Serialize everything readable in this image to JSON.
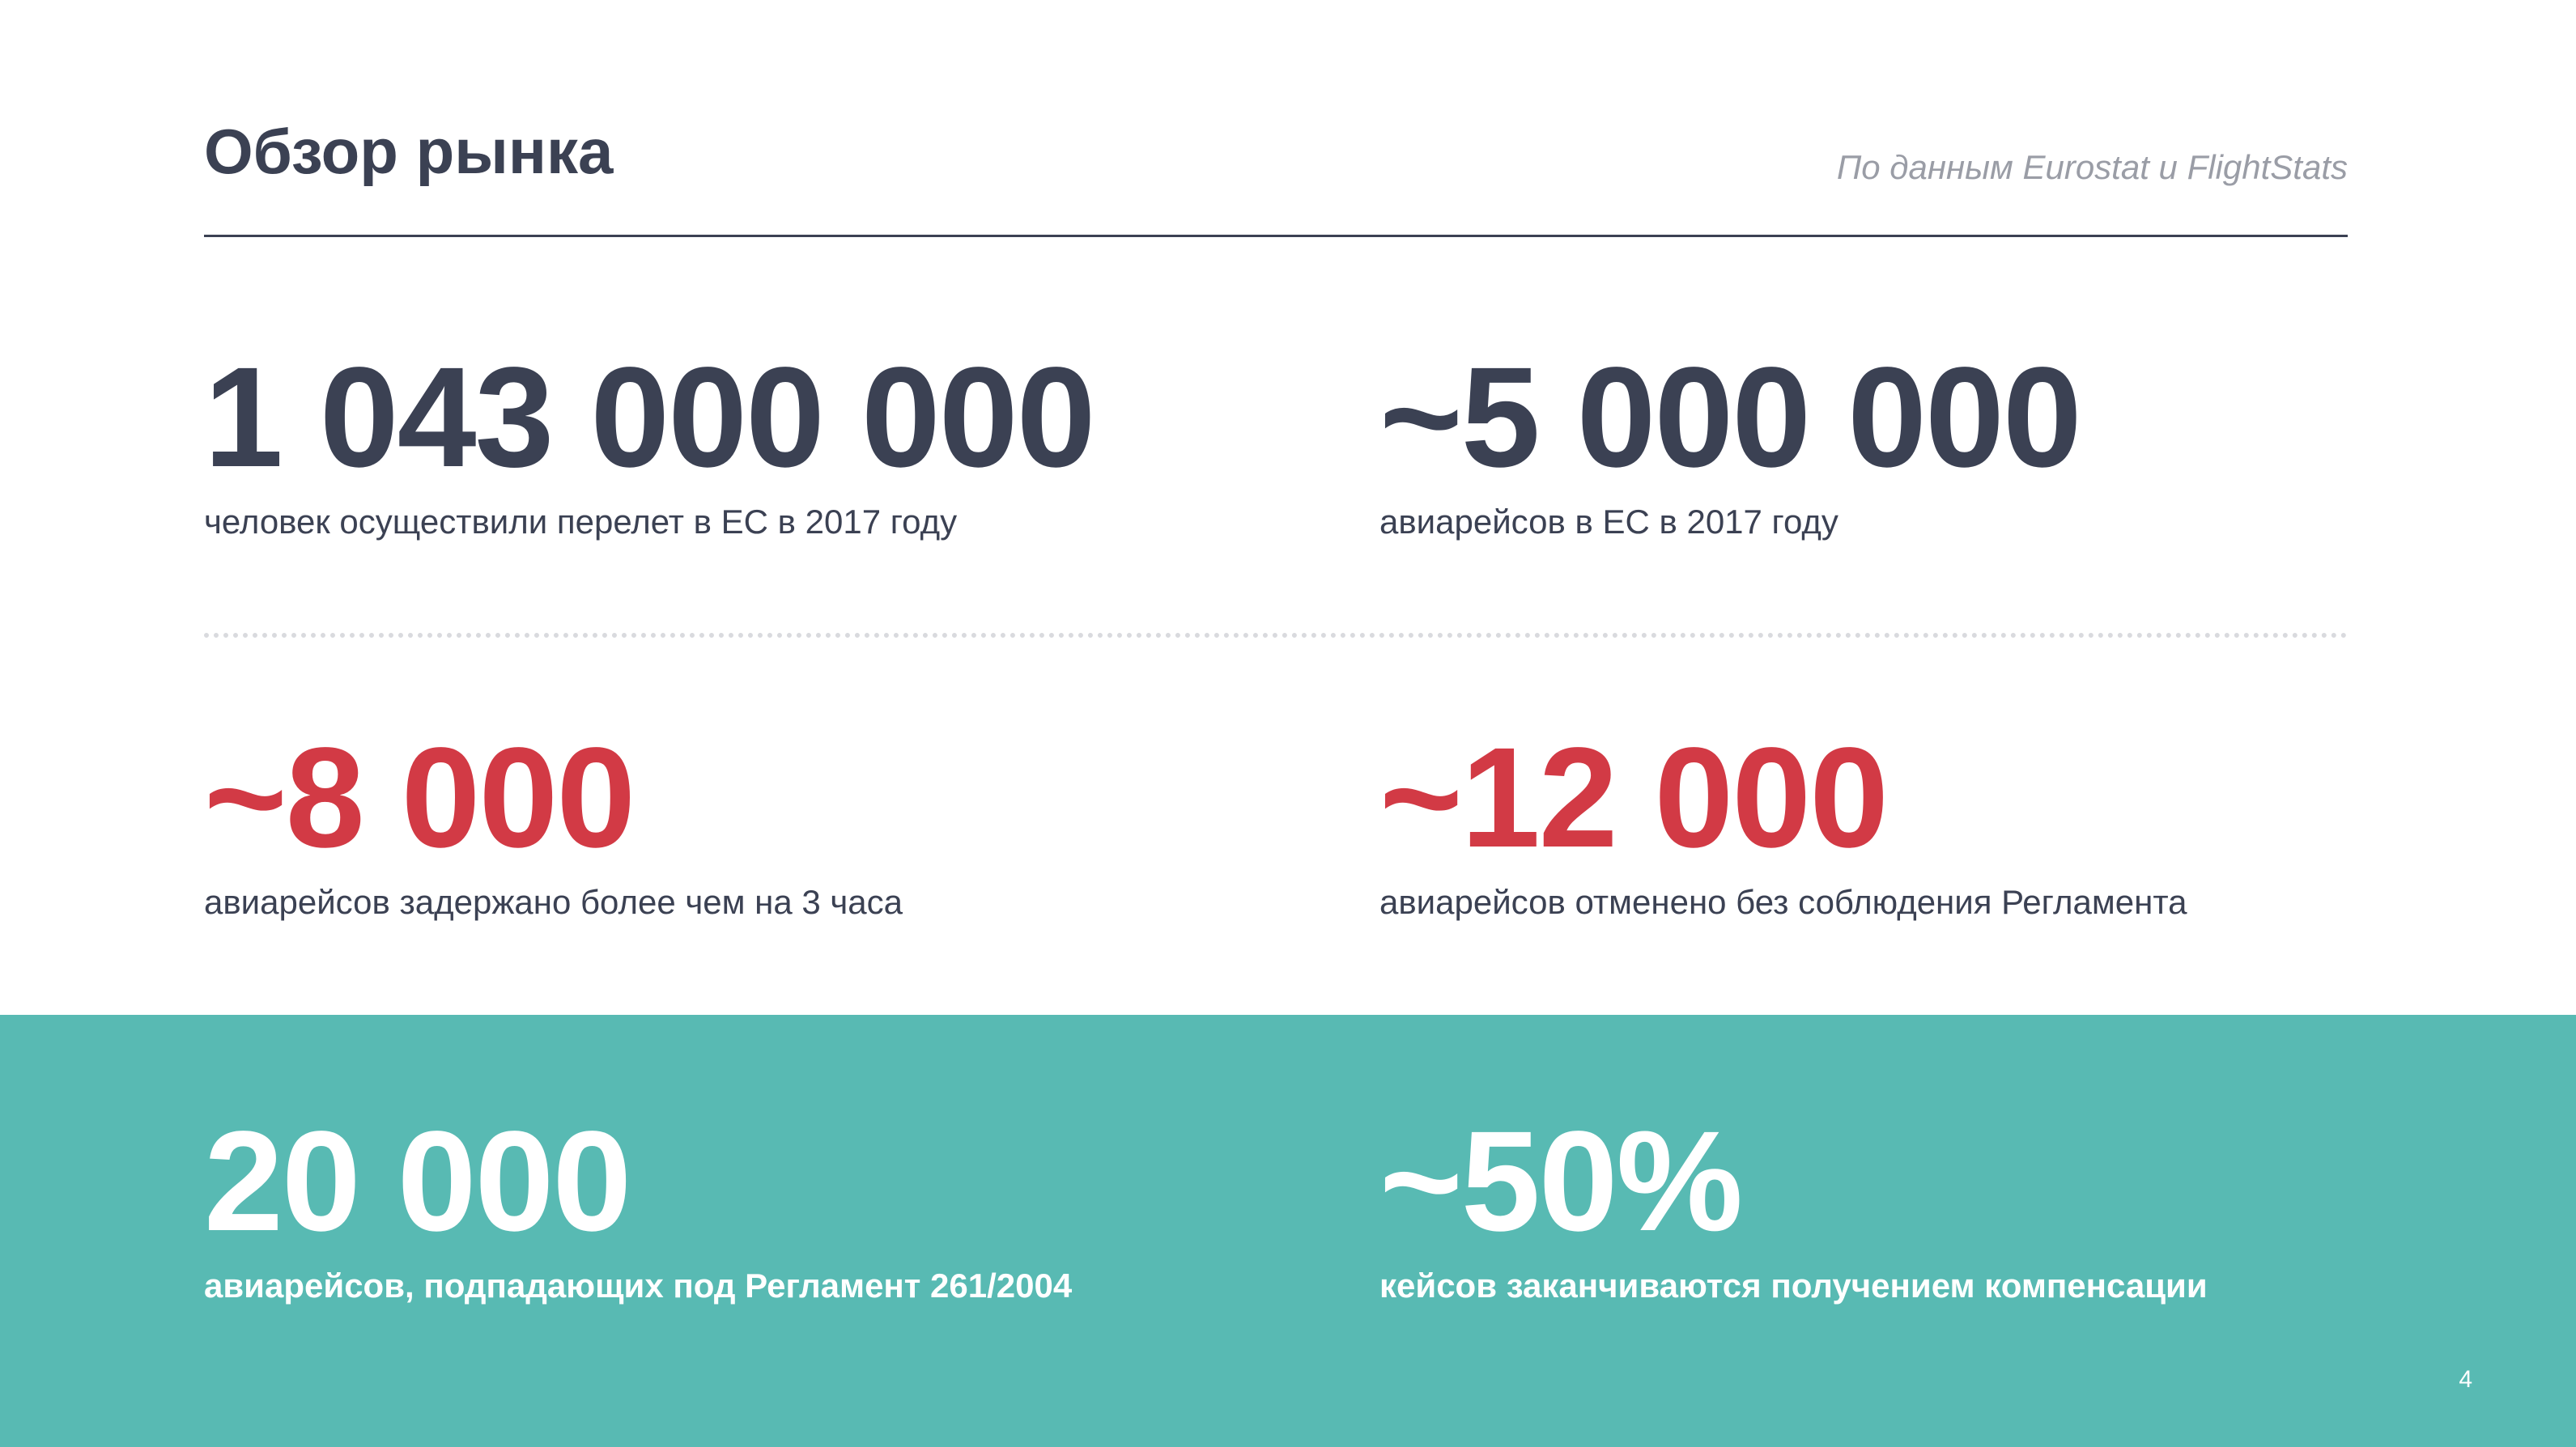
{
  "header": {
    "title": "Обзор рынка",
    "source": "По данным Eurostat и FlightStats"
  },
  "stats": [
    {
      "value": "1 043 000 000",
      "desc": "человек осуществили перелет в ЕС в 2017 году"
    },
    {
      "value": "~5 000 000",
      "desc": "авиарейсов в ЕС в 2017 году"
    },
    {
      "value": "~8 000",
      "desc": "авиарейсов задержано более чем на 3 часа"
    },
    {
      "value": "~12 000",
      "desc": "авиарейсов отменено без соблюдения Регламента"
    },
    {
      "value": "20 000",
      "desc": "авиарейсов, подпадающих под Регламент 261/2004"
    },
    {
      "value": "~50%",
      "desc": "кейсов заканчиваются получением компенсации"
    }
  ],
  "page_number": "4",
  "colors": {
    "dark_text": "#3b4153",
    "accent_red": "#d23a45",
    "teal_band": "#58bab3",
    "muted_gray": "#9a9da6"
  }
}
